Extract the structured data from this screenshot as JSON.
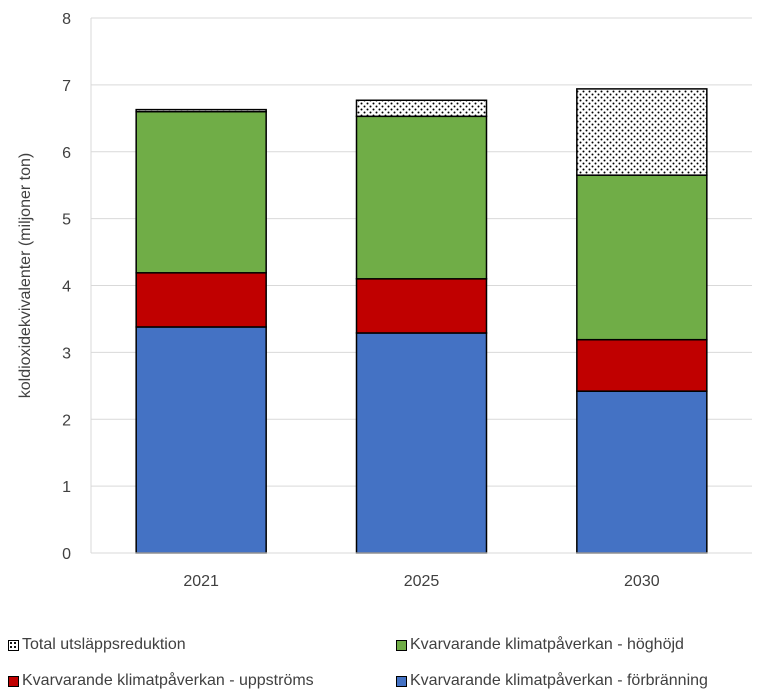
{
  "chart_data": {
    "type": "bar",
    "stacked": true,
    "categories": [
      "2021",
      "2025",
      "2030"
    ],
    "ylabel": "koldioxidekvivalenter (miljoner ton)",
    "ylim": [
      0,
      8
    ],
    "yticks": [
      "0",
      "1",
      "2",
      "3",
      "4",
      "5",
      "6",
      "7",
      "8"
    ],
    "grid": true,
    "legend_position": "bottom",
    "series": [
      {
        "name": "Kvarvarande klimatpåverkan - förbränning",
        "values": [
          3.38,
          3.29,
          2.42
        ],
        "color": "#4472c4",
        "pattern": "solid"
      },
      {
        "name": "Kvarvarande klimatpåverkan - uppströms",
        "values": [
          0.81,
          0.81,
          0.77
        ],
        "color": "#c00000",
        "pattern": "solid"
      },
      {
        "name": "Kvarvarande klimatpåverkan - höghöjd",
        "values": [
          2.41,
          2.43,
          2.46
        ],
        "color": "#70ad47",
        "pattern": "solid"
      },
      {
        "name": "Total utsläppsreduktion",
        "values": [
          0.03,
          0.24,
          1.29
        ],
        "color": "#ffffff",
        "pattern": "dots"
      }
    ]
  }
}
